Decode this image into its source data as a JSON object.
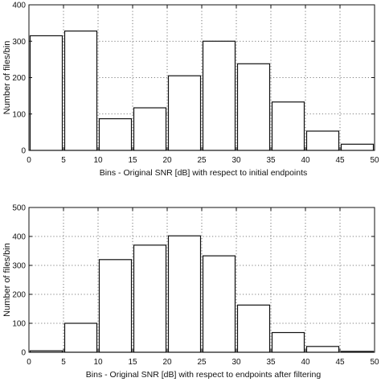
{
  "chart_data": [
    {
      "type": "bar",
      "x": [
        2.5,
        7.5,
        12.5,
        17.5,
        22.5,
        27.5,
        32.5,
        37.5,
        42.5,
        47.5
      ],
      "bin_edges": [
        0,
        5,
        10,
        15,
        20,
        25,
        30,
        35,
        40,
        45,
        50
      ],
      "values": [
        315,
        328,
        87,
        117,
        205,
        300,
        238,
        133,
        53,
        17
      ],
      "xlabel": "Bins - Original SNR [dB] with respect to initial endpoints",
      "ylabel": "Number of files/bin",
      "xlim": [
        0,
        50
      ],
      "ylim": [
        0,
        400
      ],
      "xticks": [
        0,
        5,
        10,
        15,
        20,
        25,
        30,
        35,
        40,
        45,
        50
      ],
      "yticks": [
        0,
        100,
        200,
        300,
        400
      ],
      "grid": true
    },
    {
      "type": "bar",
      "x": [
        2.5,
        7.5,
        12.5,
        17.5,
        22.5,
        27.5,
        32.5,
        37.5,
        42.5,
        47.5
      ],
      "bin_edges": [
        0,
        5,
        10,
        15,
        20,
        25,
        30,
        35,
        40,
        45,
        50
      ],
      "values": [
        5,
        100,
        320,
        370,
        402,
        333,
        163,
        68,
        20,
        3
      ],
      "xlabel": "Bins - Original SNR [dB] with respect to endpoints after filtering",
      "ylabel": "Number of files/bin",
      "xlim": [
        0,
        50
      ],
      "ylim": [
        0,
        500
      ],
      "xticks": [
        0,
        5,
        10,
        15,
        20,
        25,
        30,
        35,
        40,
        45,
        50
      ],
      "yticks": [
        0,
        100,
        200,
        300,
        400,
        500
      ],
      "grid": true
    }
  ]
}
